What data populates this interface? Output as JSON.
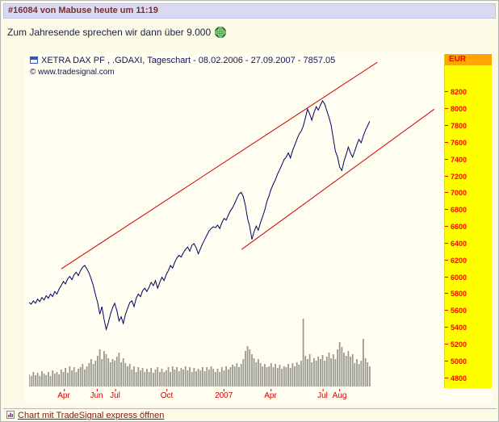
{
  "post": {
    "header": "#16084 von Mabuse heute um 11:19",
    "message": "Zum Jahresende sprechen wir dann über 9.000",
    "footer_link": "Chart mit TradeSignal express öffnen"
  },
  "chart": {
    "title": "XETRA DAX PF , .GDAXI, Tageschart - 08.02.2006 - 27.09.2007 - 7857.05",
    "copyright": "© www.tradesignal.com",
    "axis_currency": "EUR"
  },
  "chart_data": {
    "type": "line",
    "title": "XETRA DAX PF , .GDAXI, Tageschart - 08.02.2006 - 27.09.2007 - 7857.05",
    "ylabel": "EUR",
    "date_range": [
      "08.02.2006",
      "27.09.2007"
    ],
    "last_price": 7857.05,
    "ylim": [
      4700,
      8560
    ],
    "y_ticks": [
      8200,
      8000,
      7800,
      7600,
      7400,
      7200,
      7000,
      6800,
      6600,
      6400,
      6200,
      6000,
      5800,
      5600,
      5400,
      5200,
      5000,
      4800
    ],
    "x_ticks": [
      {
        "label": "Apr",
        "t": 0.084
      },
      {
        "label": "Jun",
        "t": 0.163
      },
      {
        "label": "Jul",
        "t": 0.208
      },
      {
        "label": "Oct",
        "t": 0.333
      },
      {
        "label": "2007",
        "t": 0.471
      },
      {
        "label": "Apr",
        "t": 0.584
      },
      {
        "label": "Jul",
        "t": 0.71
      },
      {
        "label": "Aug",
        "t": 0.751
      }
    ],
    "x_span": 0.824,
    "series": [
      {
        "name": ".GDAXI close (EUR)",
        "values": [
          5700,
          5680,
          5720,
          5690,
          5740,
          5710,
          5760,
          5730,
          5780,
          5750,
          5800,
          5770,
          5830,
          5800,
          5860,
          5900,
          5950,
          5920,
          5980,
          6010,
          5970,
          6030,
          6060,
          6020,
          6080,
          6120,
          6140,
          6100,
          6050,
          5980,
          5900,
          5790,
          5700,
          5560,
          5650,
          5500,
          5380,
          5460,
          5560,
          5640,
          5690,
          5600,
          5480,
          5530,
          5450,
          5560,
          5630,
          5700,
          5720,
          5650,
          5750,
          5800,
          5770,
          5840,
          5870,
          5830,
          5880,
          5940,
          5900,
          5960,
          5870,
          5940,
          6000,
          5960,
          6030,
          6080,
          6140,
          6110,
          6180,
          6230,
          6260,
          6240,
          6290,
          6330,
          6360,
          6310,
          6380,
          6400,
          6350,
          6280,
          6340,
          6400,
          6450,
          6500,
          6550,
          6580,
          6600,
          6590,
          6620,
          6580,
          6650,
          6700,
          6680,
          6740,
          6790,
          6830,
          6880,
          6940,
          6990,
          7010,
          6960,
          6850,
          6700,
          6600,
          6450,
          6540,
          6610,
          6560,
          6650,
          6720,
          6800,
          6900,
          6970,
          7050,
          7110,
          7160,
          7230,
          7280,
          7340,
          7400,
          7430,
          7480,
          7420,
          7510,
          7570,
          7640,
          7700,
          7740,
          7800,
          7900,
          8000,
          7940,
          7870,
          7960,
          8030,
          7990,
          8050,
          8100,
          8060,
          7980,
          7900,
          7810,
          7650,
          7500,
          7430,
          7310,
          7270,
          7380,
          7460,
          7550,
          7480,
          7430,
          7500,
          7580,
          7640,
          7600,
          7680,
          7750,
          7800,
          7857
        ]
      }
    ],
    "volume_relative": [
      0.18,
      0.15,
      0.22,
      0.17,
      0.2,
      0.16,
      0.23,
      0.19,
      0.17,
      0.21,
      0.16,
      0.24,
      0.19,
      0.22,
      0.18,
      0.25,
      0.22,
      0.27,
      0.2,
      0.3,
      0.24,
      0.28,
      0.22,
      0.26,
      0.28,
      0.33,
      0.25,
      0.3,
      0.35,
      0.4,
      0.33,
      0.38,
      0.45,
      0.55,
      0.4,
      0.52,
      0.48,
      0.42,
      0.36,
      0.4,
      0.38,
      0.44,
      0.5,
      0.36,
      0.42,
      0.34,
      0.3,
      0.33,
      0.25,
      0.3,
      0.22,
      0.28,
      0.24,
      0.27,
      0.21,
      0.26,
      0.22,
      0.27,
      0.2,
      0.25,
      0.28,
      0.22,
      0.26,
      0.21,
      0.24,
      0.28,
      0.22,
      0.3,
      0.25,
      0.29,
      0.23,
      0.27,
      0.25,
      0.3,
      0.24,
      0.28,
      0.22,
      0.27,
      0.23,
      0.26,
      0.24,
      0.29,
      0.23,
      0.28,
      0.25,
      0.3,
      0.26,
      0.22,
      0.26,
      0.22,
      0.28,
      0.24,
      0.3,
      0.25,
      0.28,
      0.32,
      0.3,
      0.35,
      0.28,
      0.33,
      0.4,
      0.52,
      0.6,
      0.55,
      0.48,
      0.42,
      0.36,
      0.4,
      0.34,
      0.3,
      0.33,
      0.28,
      0.3,
      0.34,
      0.28,
      0.33,
      0.27,
      0.32,
      0.26,
      0.3,
      0.28,
      0.33,
      0.27,
      0.35,
      0.3,
      0.36,
      0.32,
      0.38,
      1.0,
      0.45,
      0.4,
      0.48,
      0.36,
      0.42,
      0.38,
      0.44,
      0.4,
      0.46,
      0.38,
      0.44,
      0.5,
      0.42,
      0.48,
      0.4,
      0.55,
      0.65,
      0.58,
      0.5,
      0.45,
      0.52,
      0.44,
      0.48,
      0.35,
      0.4,
      0.33,
      0.38,
      0.7,
      0.42,
      0.36,
      0.3
    ],
    "trendlines": [
      {
        "x1": 0.078,
        "p1": 6100,
        "x2": 0.843,
        "p2": 8560
      },
      {
        "x1": 0.514,
        "p1": 6330,
        "x2": 0.98,
        "p2": 8000
      }
    ],
    "legend": "off",
    "grid": "off",
    "colors": {
      "price": "#000066",
      "trend": "#cc0000",
      "volume": "#999990",
      "axis_bg": "#ffff00",
      "axis_text": "#ff0000",
      "eur_bg": "#ffa500",
      "chart_bg": "#fffef0",
      "header_bg": "#d9d9f1",
      "header_text": "#7d2c2c"
    }
  }
}
